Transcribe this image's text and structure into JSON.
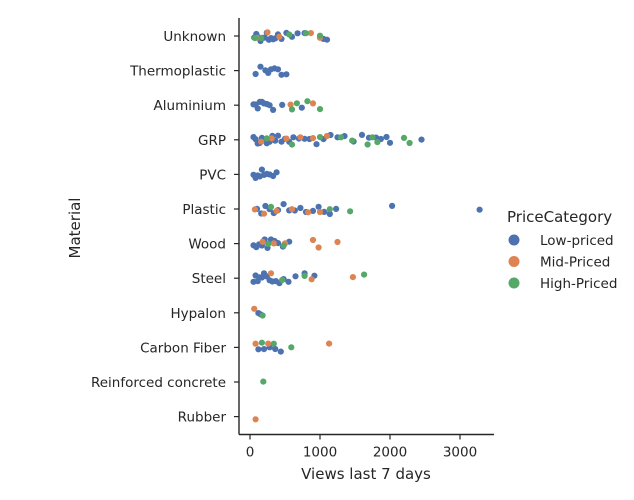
{
  "chart_data": {
    "type": "scatter",
    "title": "",
    "xlabel": "Views last 7 days",
    "ylabel": "Material",
    "xlim": [
      -130,
      3400
    ],
    "xticks": [
      0,
      1000,
      2000,
      3000
    ],
    "grid": false,
    "legend": {
      "title": "PriceCategory",
      "placement": "right",
      "entries": [
        "Low-priced",
        "Mid-Priced",
        "High-Priced"
      ]
    },
    "colors": {
      "Low-priced": "#4c72b0",
      "Mid-Priced": "#dd8452",
      "High-Priced": "#55a868"
    },
    "categories": [
      "Unknown",
      "Thermoplastic",
      "Aluminium",
      "GRP",
      "PVC",
      "Plastic",
      "Wood",
      "Steel",
      "Hypalon",
      "Carbon Fiber",
      "Reinforced concrete",
      "Rubber"
    ],
    "series": [
      {
        "name": "Low-priced",
        "points": [
          [
            "Unknown",
            60
          ],
          [
            "Unknown",
            90
          ],
          [
            "Unknown",
            120
          ],
          [
            "Unknown",
            150
          ],
          [
            "Unknown",
            180
          ],
          [
            "Unknown",
            210
          ],
          [
            "Unknown",
            240
          ],
          [
            "Unknown",
            270
          ],
          [
            "Unknown",
            300
          ],
          [
            "Unknown",
            330
          ],
          [
            "Unknown",
            360
          ],
          [
            "Unknown",
            400
          ],
          [
            "Unknown",
            450
          ],
          [
            "Unknown",
            520
          ],
          [
            "Unknown",
            600
          ],
          [
            "Unknown",
            680
          ],
          [
            "Unknown",
            780
          ],
          [
            "Unknown",
            1050
          ],
          [
            "Unknown",
            1100
          ],
          [
            "Thermoplastic",
            80
          ],
          [
            "Thermoplastic",
            150
          ],
          [
            "Thermoplastic",
            220
          ],
          [
            "Thermoplastic",
            260
          ],
          [
            "Thermoplastic",
            300
          ],
          [
            "Thermoplastic",
            350
          ],
          [
            "Thermoplastic",
            400
          ],
          [
            "Thermoplastic",
            450
          ],
          [
            "Thermoplastic",
            520
          ],
          [
            "Aluminium",
            50
          ],
          [
            "Aluminium",
            80
          ],
          [
            "Aluminium",
            110
          ],
          [
            "Aluminium",
            140
          ],
          [
            "Aluminium",
            170
          ],
          [
            "Aluminium",
            200
          ],
          [
            "Aluminium",
            240
          ],
          [
            "Aluminium",
            280
          ],
          [
            "Aluminium",
            330
          ],
          [
            "Aluminium",
            460
          ],
          [
            "Aluminium",
            740
          ],
          [
            "GRP",
            50
          ],
          [
            "GRP",
            80
          ],
          [
            "GRP",
            110
          ],
          [
            "GRP",
            140
          ],
          [
            "GRP",
            170
          ],
          [
            "GRP",
            200
          ],
          [
            "GRP",
            240
          ],
          [
            "GRP",
            280
          ],
          [
            "GRP",
            320
          ],
          [
            "GRP",
            360
          ],
          [
            "GRP",
            400
          ],
          [
            "GRP",
            450
          ],
          [
            "GRP",
            500
          ],
          [
            "GRP",
            560
          ],
          [
            "GRP",
            620
          ],
          [
            "GRP",
            700
          ],
          [
            "GRP",
            780
          ],
          [
            "GRP",
            850
          ],
          [
            "GRP",
            950
          ],
          [
            "GRP",
            1050
          ],
          [
            "GRP",
            1150
          ],
          [
            "GRP",
            1250
          ],
          [
            "GRP",
            1350
          ],
          [
            "GRP",
            1480
          ],
          [
            "GRP",
            1600
          ],
          [
            "GRP",
            1700
          ],
          [
            "GRP",
            1800
          ],
          [
            "GRP",
            1870
          ],
          [
            "GRP",
            1950
          ],
          [
            "GRP",
            2000
          ],
          [
            "GRP",
            2450
          ],
          [
            "PVC",
            50
          ],
          [
            "PVC",
            80
          ],
          [
            "PVC",
            110
          ],
          [
            "PVC",
            140
          ],
          [
            "PVC",
            170
          ],
          [
            "PVC",
            200
          ],
          [
            "PVC",
            240
          ],
          [
            "PVC",
            280
          ],
          [
            "PVC",
            330
          ],
          [
            "PVC",
            380
          ],
          [
            "Plastic",
            100
          ],
          [
            "Plastic",
            160
          ],
          [
            "Plastic",
            220
          ],
          [
            "Plastic",
            280
          ],
          [
            "Plastic",
            340
          ],
          [
            "Plastic",
            400
          ],
          [
            "Plastic",
            480
          ],
          [
            "Plastic",
            560
          ],
          [
            "Plastic",
            640
          ],
          [
            "Plastic",
            720
          ],
          [
            "Plastic",
            800
          ],
          [
            "Plastic",
            900
          ],
          [
            "Plastic",
            980
          ],
          [
            "Plastic",
            1060
          ],
          [
            "Plastic",
            1140
          ],
          [
            "Plastic",
            1230
          ],
          [
            "Plastic",
            2030
          ],
          [
            "Plastic",
            3280
          ],
          [
            "Wood",
            50
          ],
          [
            "Wood",
            90
          ],
          [
            "Wood",
            130
          ],
          [
            "Wood",
            170
          ],
          [
            "Wood",
            210
          ],
          [
            "Wood",
            250
          ],
          [
            "Wood",
            300
          ],
          [
            "Wood",
            350
          ],
          [
            "Wood",
            400
          ],
          [
            "Wood",
            470
          ],
          [
            "Wood",
            560
          ],
          [
            "Steel",
            50
          ],
          [
            "Steel",
            80
          ],
          [
            "Steel",
            110
          ],
          [
            "Steel",
            140
          ],
          [
            "Steel",
            170
          ],
          [
            "Steel",
            200
          ],
          [
            "Steel",
            240
          ],
          [
            "Steel",
            280
          ],
          [
            "Steel",
            320
          ],
          [
            "Steel",
            370
          ],
          [
            "Steel",
            420
          ],
          [
            "Steel",
            480
          ],
          [
            "Steel",
            550
          ],
          [
            "Steel",
            650
          ],
          [
            "Steel",
            780
          ],
          [
            "Steel",
            920
          ],
          [
            "Hypalon",
            120
          ],
          [
            "Hypalon",
            150
          ],
          [
            "Carbon Fiber",
            120
          ],
          [
            "Carbon Fiber",
            200
          ],
          [
            "Carbon Fiber",
            280
          ],
          [
            "Carbon Fiber",
            360
          ],
          [
            "Carbon Fiber",
            440
          ]
        ]
      },
      {
        "name": "Mid-Priced",
        "points": [
          [
            "Unknown",
            100
          ],
          [
            "Unknown",
            250
          ],
          [
            "Unknown",
            420
          ],
          [
            "Unknown",
            870
          ],
          [
            "Unknown",
            1000
          ],
          [
            "Aluminium",
            580
          ],
          [
            "Aluminium",
            900
          ],
          [
            "GRP",
            160
          ],
          [
            "GRP",
            310
          ],
          [
            "GRP",
            520
          ],
          [
            "GRP",
            720
          ],
          [
            "GRP",
            900
          ],
          [
            "GRP",
            1100
          ],
          [
            "Plastic",
            70
          ],
          [
            "Plastic",
            200
          ],
          [
            "Plastic",
            380
          ],
          [
            "Plastic",
            600
          ],
          [
            "Plastic",
            830
          ],
          [
            "Plastic",
            1000
          ],
          [
            "Wood",
            180
          ],
          [
            "Wood",
            340
          ],
          [
            "Wood",
            500
          ],
          [
            "Wood",
            900
          ],
          [
            "Wood",
            980
          ],
          [
            "Wood",
            1250
          ],
          [
            "Steel",
            300
          ],
          [
            "Steel",
            880
          ],
          [
            "Steel",
            1470
          ],
          [
            "Hypalon",
            60
          ],
          [
            "Carbon Fiber",
            80
          ],
          [
            "Carbon Fiber",
            260
          ],
          [
            "Carbon Fiber",
            1130
          ],
          [
            "Rubber",
            80
          ]
        ]
      },
      {
        "name": "High-Priced",
        "points": [
          [
            "Unknown",
            70
          ],
          [
            "Unknown",
            160
          ],
          [
            "Unknown",
            560
          ],
          [
            "Unknown",
            800
          ],
          [
            "Unknown",
            1000
          ],
          [
            "Aluminium",
            600
          ],
          [
            "Aluminium",
            670
          ],
          [
            "Aluminium",
            820
          ],
          [
            "Aluminium",
            1000
          ],
          [
            "GRP",
            240
          ],
          [
            "GRP",
            600
          ],
          [
            "GRP",
            1000
          ],
          [
            "GRP",
            1300
          ],
          [
            "GRP",
            1460
          ],
          [
            "GRP",
            1680
          ],
          [
            "GRP",
            1750
          ],
          [
            "GRP",
            1820
          ],
          [
            "GRP",
            2200
          ],
          [
            "GRP",
            2280
          ],
          [
            "Plastic",
            300
          ],
          [
            "Plastic",
            1140
          ],
          [
            "Plastic",
            1430
          ],
          [
            "Wood",
            260
          ],
          [
            "Wood",
            480
          ],
          [
            "Steel",
            460
          ],
          [
            "Steel",
            780
          ],
          [
            "Steel",
            1630
          ],
          [
            "Hypalon",
            180
          ],
          [
            "Carbon Fiber",
            170
          ],
          [
            "Carbon Fiber",
            340
          ],
          [
            "Carbon Fiber",
            590
          ],
          [
            "Reinforced concrete",
            190
          ]
        ]
      }
    ]
  }
}
